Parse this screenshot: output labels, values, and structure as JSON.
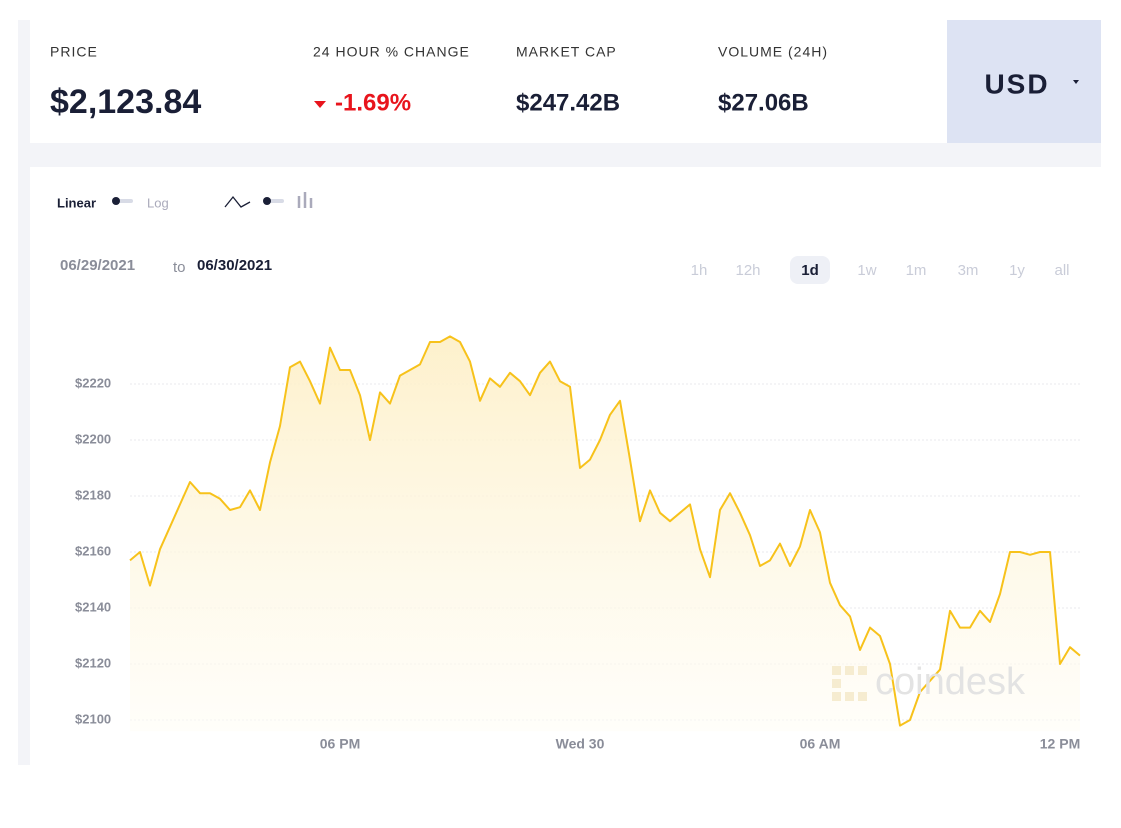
{
  "header": {
    "stats": [
      {
        "label": "PRICE",
        "value": "$2,123.84"
      },
      {
        "label": "24 HOUR % CHANGE",
        "value": "-1.69%",
        "direction": "down"
      },
      {
        "label": "MARKET CAP",
        "value": "$247.42B"
      },
      {
        "label": "VOLUME (24H)",
        "value": "$27.06B"
      }
    ],
    "currency": "USD"
  },
  "controls": {
    "scale_options": [
      "Linear",
      "Log"
    ],
    "date_from": "06/29/2021",
    "date_joiner": "to",
    "date_to": "06/30/2021",
    "ranges": [
      {
        "label": "1h",
        "active": false
      },
      {
        "label": "12h",
        "active": false
      },
      {
        "label": "1d",
        "active": true
      },
      {
        "label": "1w",
        "active": false
      },
      {
        "label": "1m",
        "active": false
      },
      {
        "label": "3m",
        "active": false
      },
      {
        "label": "1y",
        "active": false
      },
      {
        "label": "all",
        "active": false
      }
    ]
  },
  "watermark": "coindesk",
  "chart_data": {
    "type": "line",
    "color": "#f7c21b",
    "grid": true,
    "area": true,
    "x": [
      12.75,
      13,
      13.25,
      13.5,
      13.75,
      14,
      14.25,
      14.5,
      14.75,
      15,
      15.25,
      15.5,
      15.75,
      16,
      16.25,
      16.5,
      16.75,
      17,
      17.25,
      17.5,
      17.75,
      18,
      18.25,
      18.5,
      18.75,
      19,
      19.25,
      19.5,
      19.75,
      20,
      20.25,
      20.5,
      20.75,
      21,
      21.25,
      21.5,
      21.75,
      22,
      22.25,
      22.5,
      22.75,
      23,
      23.25,
      23.5,
      23.75,
      24,
      24.25,
      24.5,
      24.75,
      25,
      25.25,
      25.5,
      25.75,
      26,
      26.25,
      26.5,
      26.75,
      27,
      27.25,
      27.5,
      27.75,
      28,
      28.25,
      28.5,
      28.75,
      29,
      29.25,
      29.5,
      29.75,
      30,
      30.25,
      30.5,
      30.75,
      31,
      31.25,
      31.5,
      31.75,
      32,
      32.25,
      32.5,
      32.75,
      33,
      33.25,
      33.5,
      33.75,
      34,
      34.25,
      34.5,
      34.75,
      35,
      35.25,
      35.5,
      35.75,
      36,
      36.25,
      36.5
    ],
    "values": [
      2157,
      2160,
      2148,
      2161,
      2169,
      2177,
      2185,
      2181,
      2181,
      2179,
      2175,
      2176,
      2182,
      2175,
      2192,
      2205,
      2226,
      2228,
      2221,
      2213,
      2233,
      2225,
      2225,
      2216,
      2200,
      2217,
      2213,
      2223,
      2225,
      2227,
      2235,
      2235,
      2237,
      2235,
      2228,
      2214,
      2222,
      2219,
      2224,
      2221,
      2216,
      2224,
      2228,
      2221,
      2219,
      2190,
      2193,
      2200,
      2209,
      2214,
      2193,
      2171,
      2182,
      2174,
      2171,
      2174,
      2177,
      2161,
      2151,
      2175,
      2181,
      2174,
      2166,
      2155,
      2157,
      2163,
      2155,
      2162,
      2175,
      2167,
      2149,
      2141,
      2137,
      2125,
      2133,
      2130,
      2120,
      2098,
      2100,
      2110,
      2114,
      2118,
      2139,
      2133,
      2133,
      2139,
      2135,
      2145,
      2160,
      2160,
      2159,
      2160,
      2160,
      2120,
      2126,
      2123
    ],
    "xlim": [
      12.75,
      36.5
    ],
    "ylim": [
      2096,
      2250
    ],
    "xticks": [
      {
        "value": 18,
        "label": "06 PM"
      },
      {
        "value": 24,
        "label": "Wed 30"
      },
      {
        "value": 30,
        "label": "06 AM"
      },
      {
        "value": 36,
        "label": "12 PM"
      }
    ],
    "yticks": [
      {
        "value": 2100,
        "label": "$2100"
      },
      {
        "value": 2120,
        "label": "$2120"
      },
      {
        "value": 2140,
        "label": "$2140"
      },
      {
        "value": 2160,
        "label": "$2160"
      },
      {
        "value": 2180,
        "label": "$2180"
      },
      {
        "value": 2200,
        "label": "$2200"
      },
      {
        "value": 2220,
        "label": "$2220"
      }
    ]
  }
}
